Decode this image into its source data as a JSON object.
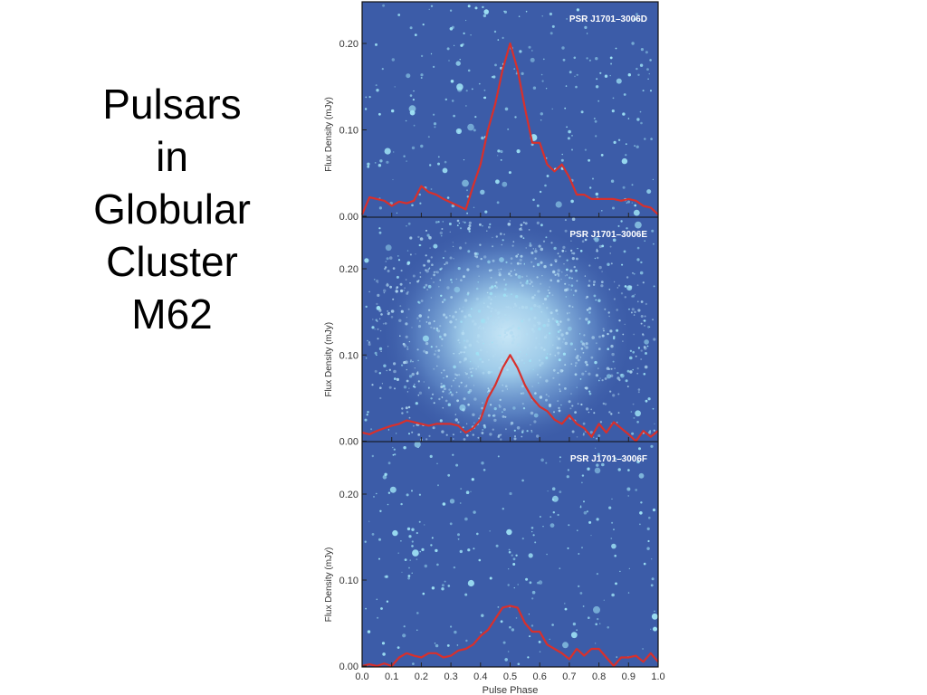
{
  "slide": {
    "title_lines": [
      "Pulsars",
      "in",
      "Globular",
      "Cluster",
      "M62"
    ]
  },
  "colors": {
    "background": "#3c5ca8",
    "profile_line": "#d8302c",
    "star": "#9fe3f5",
    "cluster_core": "#b4dcf2"
  },
  "chart_data": [
    {
      "type": "line",
      "title": "PSR J1701–3006D",
      "ylabel": "Flux Density (mJy)",
      "xlabel": "",
      "xlim": [
        0.0,
        1.0
      ],
      "ylim": [
        0.0,
        0.25
      ],
      "yticks": [
        "0.00",
        "0.10",
        "0.20"
      ],
      "background": "star field",
      "x": [
        0.0,
        0.025,
        0.05,
        0.075,
        0.1,
        0.125,
        0.15,
        0.175,
        0.2,
        0.225,
        0.25,
        0.275,
        0.3,
        0.325,
        0.35,
        0.375,
        0.4,
        0.425,
        0.45,
        0.475,
        0.5,
        0.525,
        0.55,
        0.575,
        0.6,
        0.625,
        0.65,
        0.675,
        0.7,
        0.725,
        0.75,
        0.775,
        0.8,
        0.825,
        0.85,
        0.875,
        0.9,
        0.925,
        0.95,
        0.975,
        1.0
      ],
      "y": [
        0.002,
        0.022,
        0.02,
        0.018,
        0.012,
        0.017,
        0.015,
        0.018,
        0.035,
        0.028,
        0.025,
        0.02,
        0.016,
        0.012,
        0.008,
        0.035,
        0.06,
        0.1,
        0.13,
        0.17,
        0.2,
        0.17,
        0.125,
        0.085,
        0.085,
        0.06,
        0.052,
        0.06,
        0.045,
        0.025,
        0.025,
        0.02,
        0.02,
        0.02,
        0.02,
        0.018,
        0.02,
        0.018,
        0.012,
        0.01,
        0.002
      ]
    },
    {
      "type": "line",
      "title": "PSR J1701–3006E",
      "ylabel": "Flux Density (mJy)",
      "xlabel": "",
      "xlim": [
        0.0,
        1.0
      ],
      "ylim": [
        0.0,
        0.25
      ],
      "yticks": [
        "0.00",
        "0.10",
        "0.20"
      ],
      "background": "globular cluster core",
      "x": [
        0.0,
        0.025,
        0.05,
        0.075,
        0.1,
        0.125,
        0.15,
        0.175,
        0.2,
        0.225,
        0.25,
        0.275,
        0.3,
        0.325,
        0.35,
        0.375,
        0.4,
        0.425,
        0.45,
        0.475,
        0.5,
        0.525,
        0.55,
        0.575,
        0.6,
        0.625,
        0.65,
        0.675,
        0.7,
        0.725,
        0.75,
        0.775,
        0.8,
        0.825,
        0.85,
        0.875,
        0.9,
        0.925,
        0.95,
        0.975,
        1.0
      ],
      "y": [
        0.01,
        0.008,
        0.012,
        0.015,
        0.018,
        0.02,
        0.024,
        0.022,
        0.02,
        0.018,
        0.02,
        0.02,
        0.02,
        0.018,
        0.01,
        0.015,
        0.025,
        0.05,
        0.065,
        0.085,
        0.1,
        0.085,
        0.065,
        0.05,
        0.04,
        0.035,
        0.025,
        0.02,
        0.03,
        0.02,
        0.015,
        0.005,
        0.02,
        0.01,
        0.022,
        0.015,
        0.008,
        0.0,
        0.012,
        0.005,
        0.012
      ]
    },
    {
      "type": "line",
      "title": "PSR J1701–3006F",
      "ylabel": "Flux Density (mJy)",
      "xlabel": "Pulse Phase",
      "xlim": [
        0.0,
        1.0
      ],
      "ylim": [
        0.0,
        0.25
      ],
      "yticks": [
        "0.00",
        "0.10",
        "0.20"
      ],
      "xticks": [
        "0.0",
        "0.1",
        "0.2",
        "0.3",
        "0.4",
        "0.5",
        "0.6",
        "0.7",
        "0.8",
        "0.9",
        "1.0"
      ],
      "background": "star field",
      "x": [
        0.0,
        0.025,
        0.05,
        0.075,
        0.1,
        0.125,
        0.15,
        0.175,
        0.2,
        0.225,
        0.25,
        0.275,
        0.3,
        0.325,
        0.35,
        0.375,
        0.4,
        0.425,
        0.45,
        0.475,
        0.5,
        0.525,
        0.55,
        0.575,
        0.6,
        0.625,
        0.65,
        0.675,
        0.7,
        0.725,
        0.75,
        0.775,
        0.8,
        0.825,
        0.85,
        0.875,
        0.9,
        0.925,
        0.95,
        0.975,
        1.0
      ],
      "y": [
        0.0,
        0.002,
        0.0,
        0.003,
        0.0,
        0.01,
        0.015,
        0.012,
        0.01,
        0.015,
        0.015,
        0.01,
        0.012,
        0.018,
        0.02,
        0.025,
        0.035,
        0.042,
        0.055,
        0.068,
        0.07,
        0.068,
        0.05,
        0.04,
        0.04,
        0.025,
        0.02,
        0.015,
        0.008,
        0.02,
        0.012,
        0.02,
        0.02,
        0.01,
        0.0,
        0.01,
        0.01,
        0.012,
        0.005,
        0.015,
        0.005
      ]
    }
  ]
}
